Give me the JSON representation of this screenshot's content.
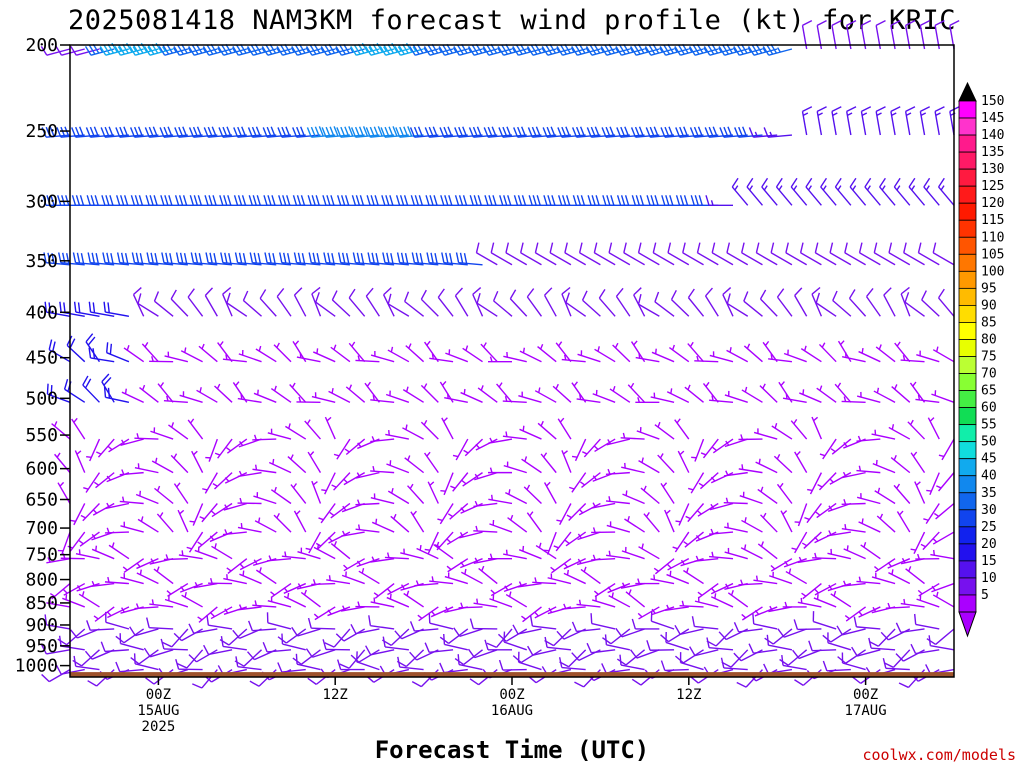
{
  "chart_data": {
    "type": "wind_barb_profile",
    "title": "2025081418 NAM3KM forecast wind profile (kt) for KRIC",
    "xlabel": "Forecast Time (UTC)",
    "ylabel": "",
    "y_axis": {
      "scale": "log-pressure",
      "direction": "reversed",
      "units": "hPa",
      "range": [
        1030,
        200
      ],
      "ticks": [
        "200",
        "250",
        "300",
        "350",
        "400",
        "450",
        "500",
        "550",
        "600",
        "650",
        "700",
        "750",
        "800",
        "850",
        "900",
        "950",
        "1000"
      ]
    },
    "x_axis": {
      "range_hours_from_2025081418": [
        0,
        60
      ],
      "step_hours": 1,
      "ticks": [
        {
          "label": "00Z",
          "sublabel": "15AUG",
          "sublabel2": "2025",
          "hour": 6
        },
        {
          "label": "12Z",
          "sublabel": "",
          "sublabel2": "",
          "hour": 18
        },
        {
          "label": "00Z",
          "sublabel": "16AUG",
          "sublabel2": "",
          "hour": 30
        },
        {
          "label": "12Z",
          "sublabel": "",
          "sublabel2": "",
          "hour": 42
        },
        {
          "label": "00Z",
          "sublabel": "17AUG",
          "sublabel2": "",
          "hour": 54
        }
      ]
    },
    "levels_hPa": [
      1000,
      950,
      900,
      850,
      800,
      750,
      700,
      650,
      600,
      550,
      500,
      450,
      400,
      350,
      300,
      250,
      200
    ],
    "wind_speed_kt_by_level": {
      "200": "10 kt at hour 0-3, 25-40 kt hours 3-45, 45 kt hours 4-8 and 20-24, 10-15 kt hours 51-60",
      "250": "30 kt hours 0-24, 40 kt hours 18-24, 30 kt hours 24-50, 15 kt hours 51-60",
      "300": "30 kt hours 0-40, 15 kt hours 45-60",
      "350": "25-30 kt hours 0-30, 10-15 kt hours 30-60",
      "400": "15-25 kt hours 0-5, 5-10 kt hours 5-60",
      "450": "5-10 kt",
      "500": "5 kt",
      "550": "5 kt",
      "600": "5 kt",
      "650": "5 kt",
      "700": "5 kt",
      "750": "5 kt",
      "800": "5 kt",
      "850": "5-10 kt",
      "900": "5-10 kt",
      "950": "5-15 kt",
      "1000": "5 kt"
    },
    "colorbar": {
      "units": "kt",
      "labels": [
        "150",
        "145",
        "140",
        "135",
        "130",
        "125",
        "120",
        "115",
        "110",
        "105",
        "100",
        "95",
        "90",
        "85",
        "80",
        "75",
        "70",
        "65",
        "60",
        "55",
        "50",
        "45",
        "40",
        "35",
        "30",
        "25",
        "20",
        "15",
        "10",
        "5"
      ],
      "colors": [
        "#ff00ff",
        "#ff33cc",
        "#ff1a8c",
        "#ff1a66",
        "#ff1a40",
        "#ff1a1a",
        "#ff1a00",
        "#ff3300",
        "#ff5500",
        "#ff7700",
        "#ff9900",
        "#ffbb00",
        "#ffdd00",
        "#ffff00",
        "#e8ff00",
        "#bbff33",
        "#88ff33",
        "#44ee44",
        "#11dd55",
        "#11eeaa",
        "#11dddd",
        "#11aaee",
        "#1188ee",
        "#1166ee",
        "#1144ee",
        "#1122ee",
        "#2211ee",
        "#5511ee",
        "#7711ee",
        "#aa00ff"
      ]
    },
    "ground_color": "#9e522c",
    "grid": false,
    "legend": "right colorbar"
  },
  "credit": "coolwx.com/models"
}
